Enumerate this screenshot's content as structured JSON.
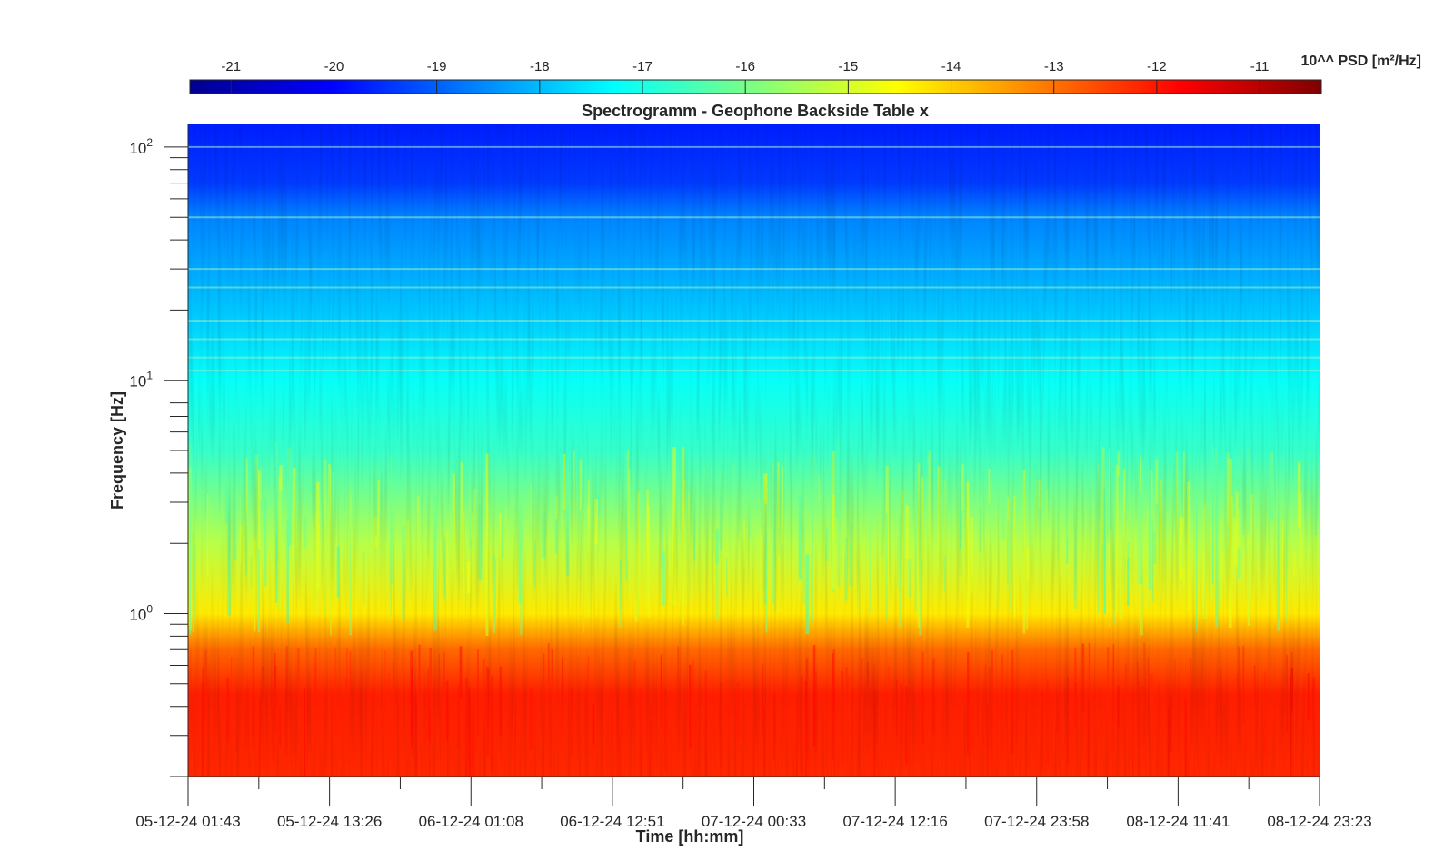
{
  "chart_data": {
    "type": "heatmap",
    "title": "Spectrogramm - Geophone Backside Table x",
    "xlabel": "Time [hh:mm]",
    "ylabel": "Frequency [Hz]",
    "x_tick_labels": [
      "05-12-24 01:43",
      "05-12-24 13:26",
      "06-12-24 01:08",
      "06-12-24 12:51",
      "07-12-24 00:33",
      "07-12-24 12:16",
      "07-12-24 23:58",
      "08-12-24 11:41",
      "08-12-24 23:23"
    ],
    "y_scale": "log",
    "y_ticks": [
      {
        "base": "10",
        "exp": "0",
        "value": 1
      },
      {
        "base": "10",
        "exp": "1",
        "value": 10
      },
      {
        "base": "10",
        "exp": "2",
        "value": 100
      }
    ],
    "ylim": [
      0.2,
      125
    ],
    "colorbar": {
      "label": "10^^ PSD [m²/Hz]",
      "tick_labels": [
        "-21",
        "-20",
        "-19",
        "-18",
        "-17",
        "-16",
        "-15",
        "-14",
        "-13",
        "-12",
        "-11"
      ],
      "range": [
        -21.4,
        -10.4
      ],
      "colormap": "jet",
      "position": "top"
    },
    "colormap_stops": [
      "#00008f",
      "#0000ff",
      "#00ffff",
      "#ffff00",
      "#ff0000",
      "#800000"
    ],
    "log10_psd_profile": [
      {
        "freq_hz": 0.2,
        "value": -12.2
      },
      {
        "freq_hz": 0.45,
        "value": -12.1
      },
      {
        "freq_hz": 0.7,
        "value": -12.9
      },
      {
        "freq_hz": 1.0,
        "value": -14.3
      },
      {
        "freq_hz": 2.0,
        "value": -15.3
      },
      {
        "freq_hz": 5.0,
        "value": -16.7
      },
      {
        "freq_hz": 10.0,
        "value": -17.2
      },
      {
        "freq_hz": 20.0,
        "value": -17.9
      },
      {
        "freq_hz": 50.0,
        "value": -18.6
      },
      {
        "freq_hz": 70.0,
        "value": -19.4
      },
      {
        "freq_hz": 125.0,
        "value": -19.7
      }
    ],
    "spectral_lines_hz": [
      11,
      12.5,
      15,
      18,
      25,
      30,
      50,
      100
    ],
    "grid": false
  }
}
